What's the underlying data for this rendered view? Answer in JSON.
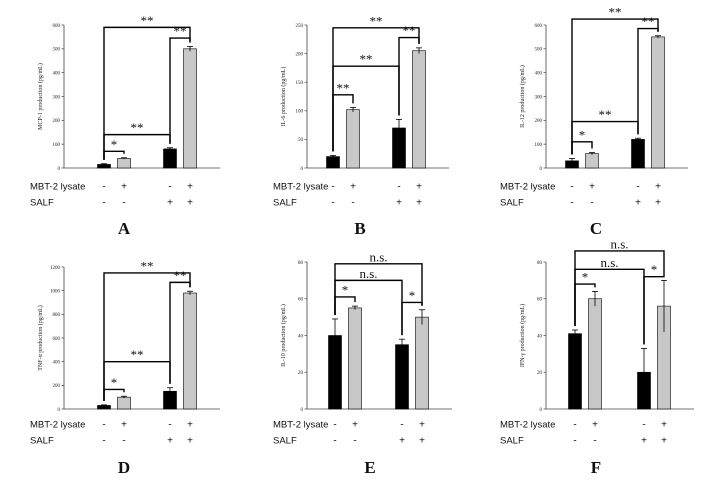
{
  "row_labels": [
    "MBT-2 lysate",
    "SALF"
  ],
  "mbt_signs": [
    "-",
    "+",
    "-",
    "+"
  ],
  "salf_signs": [
    "-",
    "-",
    "+",
    "+"
  ],
  "colors": {
    "black_bar": "#000000",
    "grey_bar": "#c8c8c8",
    "stroke": "#000000"
  },
  "chart_data": [
    {
      "type": "bar",
      "panel_label": "A",
      "ylabel": "MCP-1 production (pg/mL)",
      "ylim": [
        0,
        600
      ],
      "yticks": [
        0,
        100,
        200,
        300,
        400,
        500,
        600
      ],
      "values": [
        15,
        40,
        80,
        500
      ],
      "errors": [
        3,
        3,
        5,
        10
      ],
      "comparisons": [
        {
          "from": 0,
          "to": 1,
          "y": 70,
          "label": "*"
        },
        {
          "from": 0,
          "to": 2,
          "y": 140,
          "label": "**"
        },
        {
          "from": 2,
          "to": 3,
          "y": 545,
          "label": "**"
        },
        {
          "from": 0,
          "to": 3,
          "y": 590,
          "label": "**"
        }
      ]
    },
    {
      "type": "bar",
      "panel_label": "B",
      "ylabel": "IL-6 production (pg/mL)",
      "ylim": [
        0,
        250
      ],
      "yticks": [
        0,
        50,
        100,
        150,
        200,
        250
      ],
      "values": [
        20,
        102,
        70,
        205
      ],
      "errors": [
        2,
        4,
        15,
        5
      ],
      "comparisons": [
        {
          "from": 0,
          "to": 1,
          "y": 128,
          "label": "**"
        },
        {
          "from": 0,
          "to": 2,
          "y": 178,
          "label": "**"
        },
        {
          "from": 2,
          "to": 3,
          "y": 228,
          "label": "**"
        },
        {
          "from": 0,
          "to": 3,
          "y": 245,
          "label": "**"
        }
      ]
    },
    {
      "type": "bar",
      "panel_label": "C",
      "ylabel": "IL-12 production (pg/mL)",
      "ylim": [
        0,
        600
      ],
      "yticks": [
        0,
        100,
        200,
        300,
        400,
        500,
        600
      ],
      "values": [
        30,
        60,
        120,
        550
      ],
      "errors": [
        10,
        5,
        5,
        5
      ],
      "comparisons": [
        {
          "from": 0,
          "to": 1,
          "y": 110,
          "label": "*"
        },
        {
          "from": 0,
          "to": 2,
          "y": 195,
          "label": "**"
        },
        {
          "from": 2,
          "to": 3,
          "y": 585,
          "label": "**"
        },
        {
          "from": 0,
          "to": 3,
          "y": 625,
          "label": "**"
        }
      ]
    },
    {
      "type": "bar",
      "panel_label": "D",
      "ylabel": "TNF-α production (pg/mL)",
      "ylim": [
        0,
        1200
      ],
      "yticks": [
        0,
        200,
        400,
        600,
        800,
        1000,
        1200
      ],
      "values": [
        30,
        100,
        150,
        980
      ],
      "errors": [
        5,
        8,
        30,
        15
      ],
      "comparisons": [
        {
          "from": 0,
          "to": 1,
          "y": 165,
          "label": "*"
        },
        {
          "from": 0,
          "to": 2,
          "y": 400,
          "label": "**"
        },
        {
          "from": 2,
          "to": 3,
          "y": 1070,
          "label": "**"
        },
        {
          "from": 0,
          "to": 3,
          "y": 1150,
          "label": "**"
        }
      ]
    },
    {
      "type": "bar",
      "panel_label": "E",
      "ylabel": "IL-10 production (pg/mL)",
      "ylim": [
        0,
        80
      ],
      "yticks": [
        0,
        20,
        40,
        60,
        80
      ],
      "values": [
        40,
        55,
        35,
        50
      ],
      "errors": [
        9,
        1,
        3,
        4
      ],
      "comparisons": [
        {
          "from": 0,
          "to": 1,
          "y": 61,
          "label": "*"
        },
        {
          "from": 2,
          "to": 3,
          "y": 58,
          "label": "*"
        },
        {
          "from": 0,
          "to": 2,
          "y": 70,
          "label": "n.s."
        },
        {
          "from": 0,
          "to": 3,
          "y": 79,
          "label": "n.s."
        }
      ]
    },
    {
      "type": "bar",
      "panel_label": "F",
      "ylabel": "IFN-γ production (pg/mL)",
      "ylim": [
        0,
        80
      ],
      "yticks": [
        0,
        20,
        40,
        60,
        80
      ],
      "values": [
        41,
        60,
        20,
        56
      ],
      "errors": [
        2,
        4,
        13,
        14
      ],
      "comparisons": [
        {
          "from": 0,
          "to": 1,
          "y": 68,
          "label": "*"
        },
        {
          "from": 2,
          "to": 3,
          "y": 72,
          "label": "*"
        },
        {
          "from": 0,
          "to": 2,
          "y": 76,
          "label": "n.s."
        },
        {
          "from": 0,
          "to": 3,
          "y": 86,
          "label": "n.s."
        }
      ]
    }
  ]
}
